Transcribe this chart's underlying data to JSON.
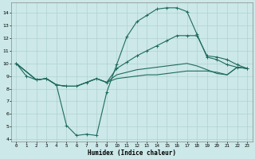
{
  "xlabel": "Humidex (Indice chaleur)",
  "bg_color": "#cce8e8",
  "line_color": "#1e6b5e",
  "xlim": [
    -0.5,
    23.5
  ],
  "ylim": [
    3.8,
    14.8
  ],
  "xticks": [
    0,
    1,
    2,
    3,
    4,
    5,
    6,
    7,
    8,
    9,
    10,
    11,
    12,
    13,
    14,
    15,
    16,
    17,
    18,
    19,
    20,
    21,
    22,
    23
  ],
  "yticks": [
    4,
    5,
    6,
    7,
    8,
    9,
    10,
    11,
    12,
    13,
    14
  ],
  "line1_x": [
    0,
    1,
    2,
    3,
    4,
    5,
    6,
    7,
    8,
    9,
    10,
    11,
    12,
    13,
    14,
    15,
    16,
    17,
    18,
    19,
    20,
    21,
    22,
    23
  ],
  "line1_y": [
    10,
    9,
    8.7,
    8.8,
    8.3,
    5.1,
    4.3,
    4.4,
    4.3,
    7.7,
    9.9,
    12.1,
    13.3,
    13.8,
    14.3,
    14.4,
    14.4,
    14.1,
    12.3,
    10.5,
    10.3,
    9.9,
    9.7,
    9.6
  ],
  "line2_x": [
    0,
    2,
    3,
    4,
    5,
    6,
    7,
    8,
    9,
    10,
    11,
    12,
    13,
    14,
    15,
    16,
    17,
    18,
    19,
    20,
    21,
    22,
    23
  ],
  "line2_y": [
    10,
    8.7,
    8.8,
    8.3,
    8.2,
    8.2,
    8.5,
    8.8,
    8.5,
    9.6,
    10.1,
    10.6,
    11.0,
    11.4,
    11.8,
    12.2,
    12.2,
    12.2,
    10.6,
    10.5,
    10.3,
    9.9,
    9.6
  ],
  "line3_x": [
    0,
    2,
    3,
    4,
    5,
    6,
    7,
    8,
    9,
    10,
    11,
    12,
    13,
    14,
    15,
    16,
    17,
    18,
    19,
    20,
    21,
    22,
    23
  ],
  "line3_y": [
    10,
    8.7,
    8.8,
    8.3,
    8.2,
    8.2,
    8.5,
    8.8,
    8.5,
    9.1,
    9.3,
    9.5,
    9.6,
    9.7,
    9.8,
    9.9,
    10.0,
    9.8,
    9.5,
    9.2,
    9.1,
    9.7,
    9.6
  ],
  "line4_x": [
    0,
    2,
    3,
    4,
    5,
    6,
    7,
    8,
    9,
    10,
    11,
    12,
    13,
    14,
    15,
    16,
    17,
    18,
    19,
    20,
    21,
    22,
    23
  ],
  "line4_y": [
    10,
    8.7,
    8.8,
    8.3,
    8.2,
    8.2,
    8.5,
    8.8,
    8.5,
    8.8,
    8.9,
    9.0,
    9.1,
    9.1,
    9.2,
    9.3,
    9.4,
    9.4,
    9.4,
    9.3,
    9.1,
    9.7,
    9.6
  ]
}
